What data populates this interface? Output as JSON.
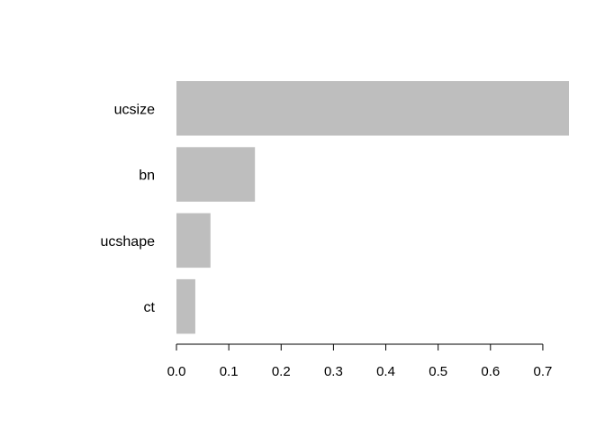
{
  "chart_data": {
    "type": "bar",
    "orientation": "horizontal",
    "title": "",
    "xlabel": "",
    "ylabel": "",
    "categories": [
      "ucsize",
      "bn",
      "ucshape",
      "ct"
    ],
    "values": [
      0.75,
      0.15,
      0.065,
      0.036
    ],
    "xlim": [
      0,
      0.75
    ],
    "x_ticks": [
      0.0,
      0.1,
      0.2,
      0.3,
      0.4,
      0.5,
      0.6,
      0.7
    ],
    "x_tick_labels": [
      "0.0",
      "0.1",
      "0.2",
      "0.3",
      "0.4",
      "0.5",
      "0.6",
      "0.7"
    ],
    "bar_color": "#bebebe",
    "axis_color": "#000000",
    "grid": false,
    "legend": "none"
  }
}
